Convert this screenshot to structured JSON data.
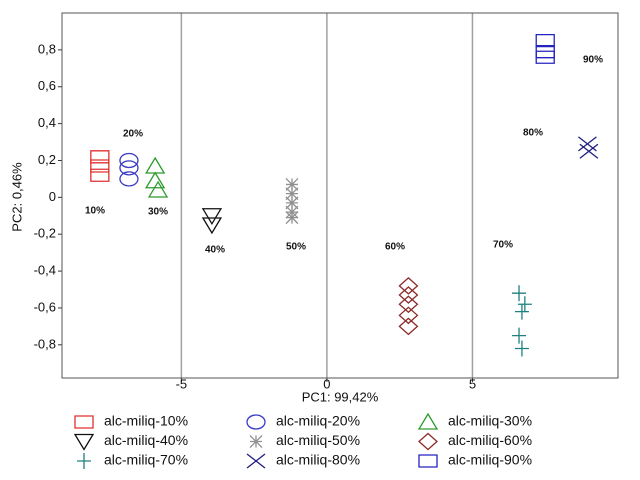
{
  "chart_data": {
    "type": "scatter",
    "xlabel": "PC1: 99,42%",
    "ylabel": "PC2: 0,46%",
    "xlim": [
      -9.1,
      10
    ],
    "ylim": [
      -0.98,
      1.0
    ],
    "xticks": [
      -5,
      0,
      5
    ],
    "yticks": [
      {
        "value": -0.8,
        "label": "-0,8"
      },
      {
        "value": -0.6,
        "label": "-0,6"
      },
      {
        "value": -0.4,
        "label": "-0,4"
      },
      {
        "value": -0.2,
        "label": "-0,2"
      },
      0,
      {
        "value": 0.2,
        "label": "0,2"
      },
      {
        "value": 0.4,
        "label": "0,4"
      },
      {
        "value": 0.6,
        "label": "0,6"
      },
      {
        "value": 0.8,
        "label": "0,8"
      }
    ],
    "x_grid": true,
    "annotations": [
      "10%",
      "20%",
      "30%",
      "40%",
      "50%",
      "60%",
      "70%",
      "80%",
      "90%"
    ],
    "series": [
      {
        "name": "alc-miliq-10%",
        "color": "#e03030",
        "marker": "square",
        "x": [
          -7.8,
          -7.8,
          -7.8
        ],
        "values": [
          0.22,
          0.17,
          0.12
        ]
      },
      {
        "name": "alc-miliq-20%",
        "color": "#3a3ac8",
        "marker": "circle",
        "x": [
          -6.8,
          -6.8,
          -6.8
        ],
        "values": [
          0.2,
          0.16,
          0.1
        ]
      },
      {
        "name": "alc-miliq-30%",
        "color": "#2e9a2e",
        "marker": "triangle",
        "x": [
          -5.9,
          -5.9,
          -5.8
        ],
        "values": [
          0.17,
          0.09,
          0.04
        ]
      },
      {
        "name": "alc-miliq-40%",
        "color": "#111111",
        "marker": "triangle-down",
        "x": [
          -3.95,
          -3.95
        ],
        "values": [
          -0.1,
          -0.15
        ]
      },
      {
        "name": "alc-miliq-50%",
        "color": "#909090",
        "marker": "asterisk",
        "x": [
          -1.2,
          -1.2,
          -1.2,
          -1.2,
          -1.2
        ],
        "values": [
          0.07,
          0.02,
          -0.03,
          -0.08,
          -0.11
        ]
      },
      {
        "name": "alc-miliq-60%",
        "color": "#8b2a2a",
        "marker": "diamond",
        "x": [
          2.8,
          2.8,
          2.8,
          2.8,
          2.8
        ],
        "values": [
          -0.48,
          -0.53,
          -0.58,
          -0.64,
          -0.7
        ]
      },
      {
        "name": "alc-miliq-70%",
        "color": "#1f8080",
        "marker": "plus",
        "x": [
          6.6,
          6.8,
          6.7,
          6.6,
          6.7
        ],
        "values": [
          -0.52,
          -0.58,
          -0.62,
          -0.75,
          -0.82
        ]
      },
      {
        "name": "alc-miliq-80%",
        "color": "#1e1e80",
        "marker": "x",
        "x": [
          8.95,
          9.0
        ],
        "values": [
          0.29,
          0.25
        ]
      },
      {
        "name": "alc-miliq-90%",
        "color": "#2424c0",
        "marker": "square",
        "x": [
          7.5,
          7.5,
          7.5
        ],
        "values": [
          0.85,
          0.79,
          0.76
        ]
      }
    ]
  }
}
